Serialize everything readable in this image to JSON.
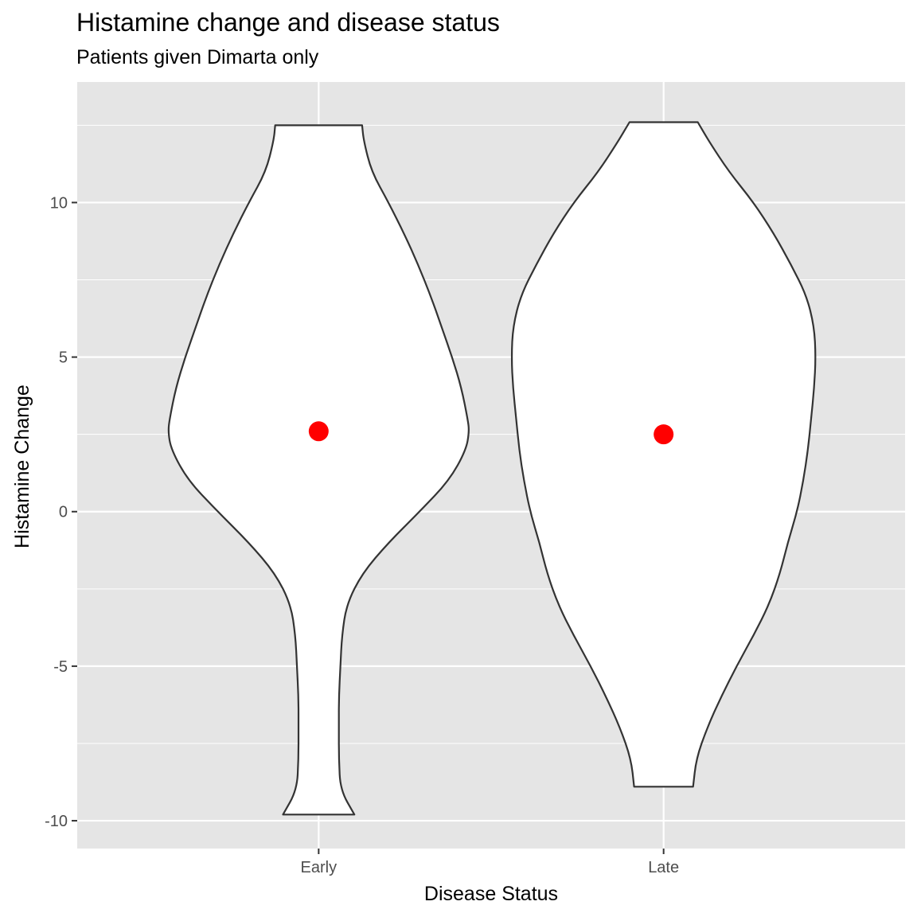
{
  "chart_data": {
    "type": "violin",
    "title": "Histamine change and disease status",
    "subtitle": "Patients given Dimarta only",
    "xlabel": "Disease Status",
    "ylabel": "Histamine Change",
    "categories": [
      "Early",
      "Late"
    ],
    "ylim": [
      -10.9,
      13.9
    ],
    "yticks": [
      -10,
      -5,
      0,
      5,
      10
    ],
    "ytick_labels": [
      "-10",
      "-5",
      "0",
      "5",
      "10"
    ],
    "grid": true,
    "colors": {
      "panel": "#e5e5e5",
      "grid": "#ffffff",
      "violin_fill": "#ffffff",
      "violin_stroke": "#333333",
      "mean_point": "#ff0000",
      "tick_text": "#4d4d4d"
    },
    "violins": [
      {
        "category": "Early",
        "min": -9.8,
        "max": 12.5,
        "mean": 2.6,
        "profile": [
          [
            12.5,
            0.28
          ],
          [
            12.0,
            0.29
          ],
          [
            11.0,
            0.34
          ],
          [
            10.0,
            0.45
          ],
          [
            9.0,
            0.55
          ],
          [
            8.0,
            0.64
          ],
          [
            7.0,
            0.72
          ],
          [
            6.0,
            0.79
          ],
          [
            5.0,
            0.86
          ],
          [
            4.0,
            0.92
          ],
          [
            3.0,
            0.96
          ],
          [
            2.6,
            0.97
          ],
          [
            2.0,
            0.95
          ],
          [
            1.0,
            0.84
          ],
          [
            0.0,
            0.65
          ],
          [
            -1.0,
            0.45
          ],
          [
            -2.0,
            0.28
          ],
          [
            -3.0,
            0.18
          ],
          [
            -4.0,
            0.15
          ],
          [
            -5.0,
            0.14
          ],
          [
            -6.0,
            0.13
          ],
          [
            -7.0,
            0.13
          ],
          [
            -8.0,
            0.13
          ],
          [
            -9.0,
            0.14
          ],
          [
            -9.8,
            0.23
          ]
        ]
      },
      {
        "category": "Late",
        "min": -8.9,
        "max": 12.6,
        "mean": 2.5,
        "profile": [
          [
            12.6,
            0.22
          ],
          [
            12.0,
            0.29
          ],
          [
            11.0,
            0.42
          ],
          [
            10.0,
            0.58
          ],
          [
            9.0,
            0.71
          ],
          [
            8.0,
            0.82
          ],
          [
            7.0,
            0.92
          ],
          [
            6.0,
            0.97
          ],
          [
            5.0,
            0.98
          ],
          [
            4.0,
            0.97
          ],
          [
            3.0,
            0.95
          ],
          [
            2.0,
            0.93
          ],
          [
            1.0,
            0.9
          ],
          [
            0.0,
            0.86
          ],
          [
            -1.0,
            0.8
          ],
          [
            -2.0,
            0.75
          ],
          [
            -3.0,
            0.68
          ],
          [
            -4.0,
            0.58
          ],
          [
            -5.0,
            0.47
          ],
          [
            -6.0,
            0.37
          ],
          [
            -7.0,
            0.28
          ],
          [
            -8.0,
            0.21
          ],
          [
            -8.9,
            0.19
          ]
        ]
      }
    ]
  }
}
